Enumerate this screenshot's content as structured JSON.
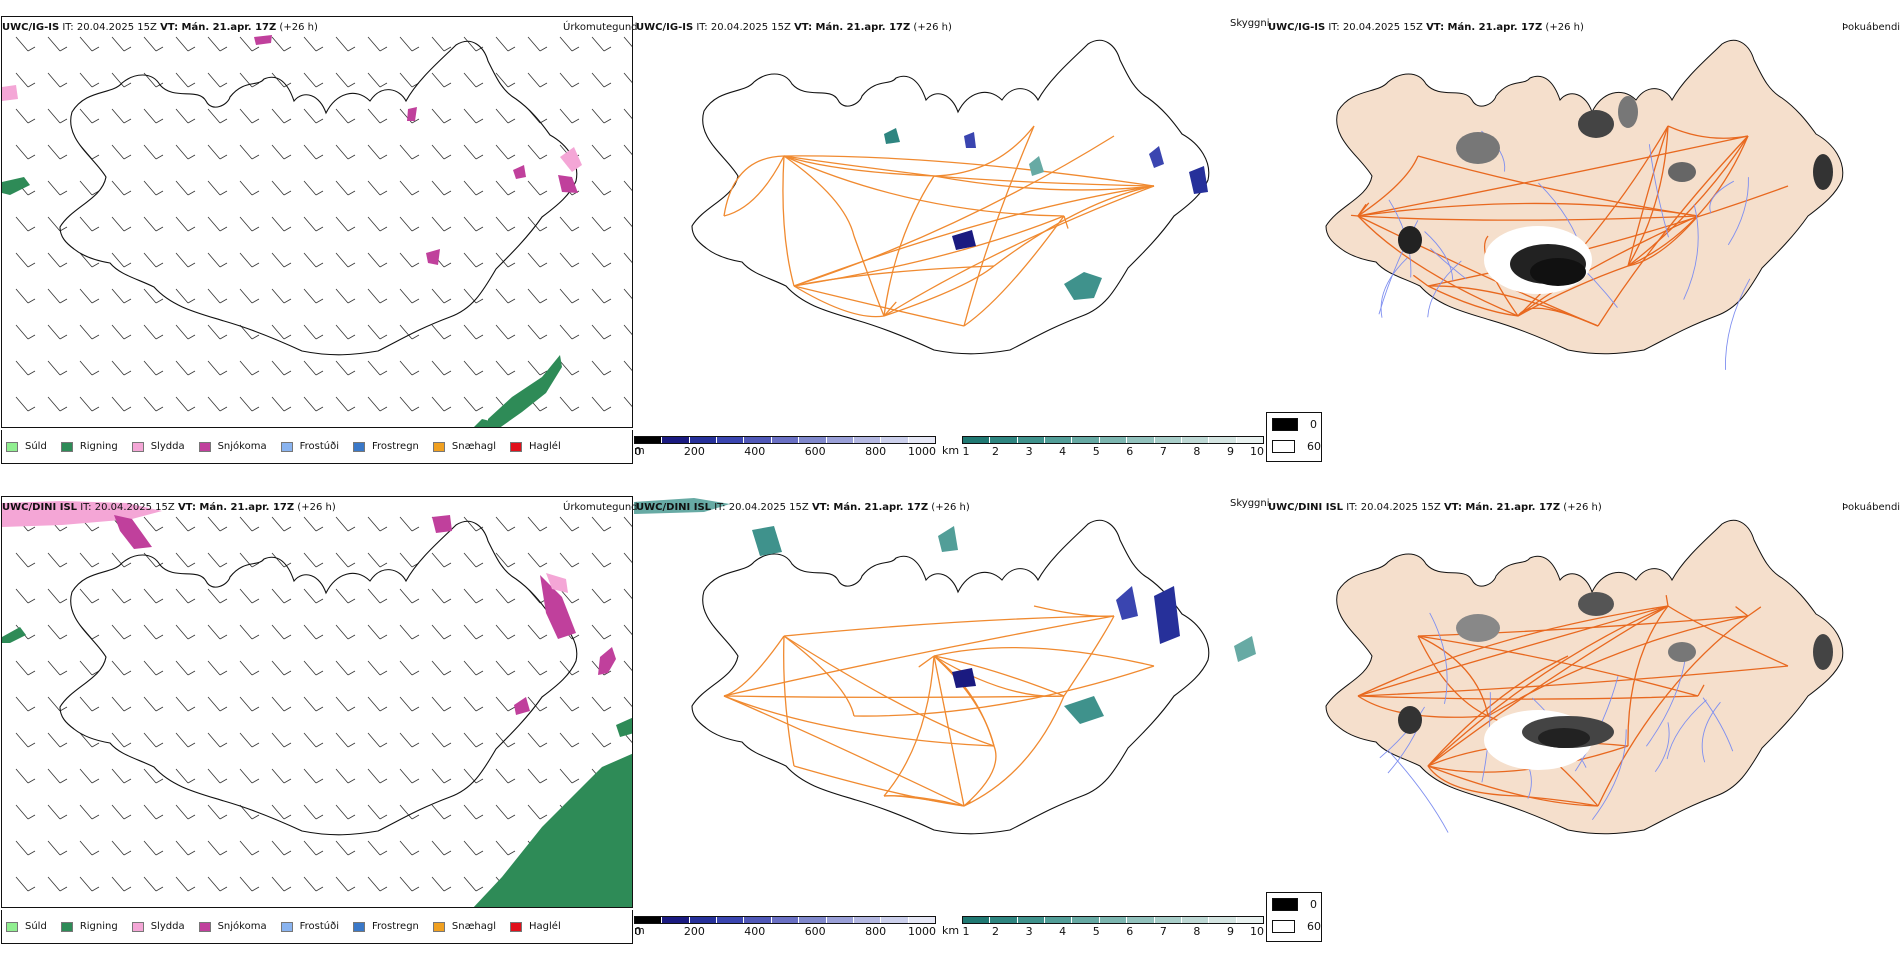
{
  "colors": {
    "land": "#f5dfcc",
    "roads": "#e8681f",
    "road_orange": "#f08a30",
    "rivers": "#7f8ff0",
    "coast": "#111111",
    "pink": "#f0a6d4",
    "magenta": "#c84fa0",
    "teal_green": "#3a9870",
    "blue_dark": "#1c2a9b"
  },
  "rows": [
    {
      "id": "top",
      "panels": {
        "precip": {
          "model": "UWC/IG-IS",
          "it": "IT: 20.04.2025 15Z",
          "vt": "VT: Mán. 21.apr. 17Z",
          "lead": "(+26 h)",
          "right_label": "Úrkomutegund"
        },
        "visibility": {
          "model": "UWC/IG-IS",
          "it": "IT: 20.04.2025 15Z",
          "vt": "VT: Mán. 21.apr. 17Z",
          "lead": "(+26 h)",
          "right_label": "Skyggni"
        },
        "fog": {
          "model": "UWC/IG-IS",
          "it": "IT: 20.04.2025 15Z",
          "vt": "VT: Mán. 21.apr. 17Z",
          "lead": "(+26 h)",
          "right_label": "Þokuábendi"
        }
      }
    },
    {
      "id": "bottom",
      "panels": {
        "precip": {
          "model": "UWC/DINI ISL",
          "it": "IT: 20.04.2025 15Z",
          "vt": "VT: Mán. 21.apr. 17Z",
          "lead": "(+26 h)",
          "right_label": "Úrkomutegund"
        },
        "visibility": {
          "model": "UWC/DINI ISL",
          "it": "IT: 20.04.2025 15Z",
          "vt": "VT: Mán. 21.apr. 17Z",
          "lead": "(+26 h)",
          "right_label": "Skyggni"
        },
        "fog": {
          "model": "UWC/DINI ISL",
          "it": "IT: 20.04.2025 15Z",
          "vt": "VT: Mán. 21.apr. 17Z",
          "lead": "(+26 h)",
          "right_label": "Þokuábendi"
        }
      }
    }
  ],
  "precip_legend": [
    {
      "label": "Súld",
      "color": "#90ee90"
    },
    {
      "label": "Rigning",
      "color": "#2e8b57"
    },
    {
      "label": "Slydda",
      "color": "#f4a6d6"
    },
    {
      "label": "Snjókoma",
      "color": "#c0409c"
    },
    {
      "label": "Frostúði",
      "color": "#8ab4f0"
    },
    {
      "label": "Frostregn",
      "color": "#3a78c8"
    },
    {
      "label": "Snæhagl",
      "color": "#f0a020"
    },
    {
      "label": "Haglél",
      "color": "#e0101a"
    }
  ],
  "elevation_bar": {
    "unit": "m",
    "ticks": [
      "0",
      "200",
      "400",
      "600",
      "800",
      "1000"
    ],
    "colors": [
      "#000000",
      "#1a1a80",
      "#26309a",
      "#3a45b0",
      "#5058b8",
      "#6a70c4",
      "#8088cc",
      "#9aa0d8",
      "#b4b8e2",
      "#ccd0ec",
      "#e6e8f6"
    ]
  },
  "visibility_bar": {
    "unit": "km",
    "ticks": [
      "1",
      "2",
      "3",
      "4",
      "5",
      "6",
      "7",
      "8",
      "9",
      "10"
    ],
    "colors": [
      "#1f7872",
      "#2e8580",
      "#3f928c",
      "#529e98",
      "#67aaa4",
      "#7cb6b0",
      "#92c2bd",
      "#a8cec9",
      "#bed9d5",
      "#d4e5e2",
      "#e9f2f0"
    ]
  },
  "fog_legend": [
    {
      "label": "0",
      "color": "#000000"
    },
    {
      "label": "60",
      "color": "#ffffff"
    }
  ],
  "map_icons": {
    "wind_barbs": "wind-barb-icon",
    "iceland": "iceland-outline"
  }
}
